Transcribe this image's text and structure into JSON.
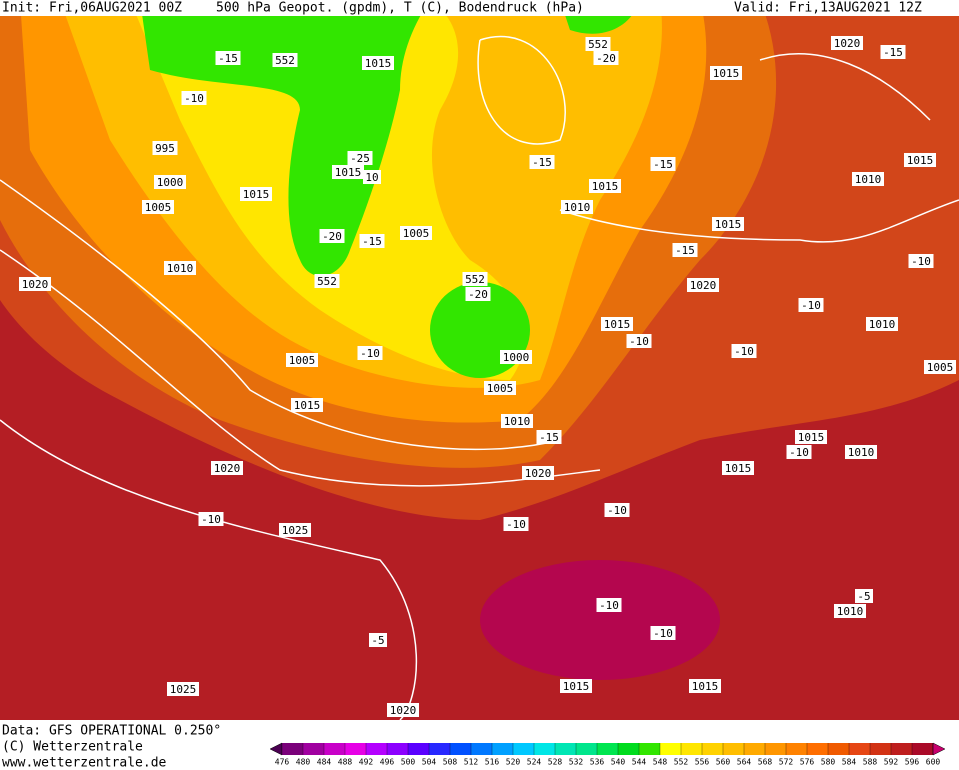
{
  "header": {
    "init": "Init: Fri,06AUG2021 00Z",
    "title": "500 hPa Geopot. (gpdm), T (C), Bodendruck (hPa)",
    "valid": "Valid: Fri,13AUG2021 12Z"
  },
  "map": {
    "labels": [
      "1015",
      "1020",
      "1015",
      "-15",
      "552",
      "552",
      "-20",
      "-15",
      "-10",
      "995",
      "-25",
      "-15",
      "-15",
      "1015",
      "10",
      "1000",
      "1015",
      "1015",
      "1010",
      "1005",
      "1015",
      "1010",
      "1015",
      "-20",
      "-15",
      "1005",
      "-15",
      "1010",
      "1020",
      "-10",
      "552",
      "552",
      "-20",
      "1020",
      "-10",
      "1010",
      "1015",
      "-10",
      "-10",
      "1005",
      "-10",
      "1000",
      "1005",
      "1005",
      "1015",
      "1010",
      "-15",
      "1015",
      "-10",
      "1010",
      "1015",
      "1020",
      "1020",
      "-10",
      "-10",
      "-10",
      "1025",
      "-5",
      "1010",
      "-10",
      "-10",
      "-5",
      "1025",
      "1015",
      "1015",
      "1020"
    ]
  },
  "footer": {
    "data": "Data: GFS OPERATIONAL 0.250°",
    "copyright": "(C) Wetterzentrale",
    "url": "www.wetterzentrale.de"
  },
  "colorbar": {
    "ticks": [
      476,
      480,
      484,
      488,
      492,
      496,
      500,
      504,
      508,
      512,
      516,
      520,
      524,
      528,
      532,
      536,
      540,
      544,
      548,
      552,
      556,
      560,
      564,
      568,
      572,
      576,
      580,
      584,
      588,
      592,
      596,
      600
    ],
    "colors": [
      "#4b0052",
      "#7a007a",
      "#a000a0",
      "#c800c8",
      "#e600e6",
      "#b400ff",
      "#8c00ff",
      "#5a00ff",
      "#2828ff",
      "#0050ff",
      "#0078ff",
      "#00a0ff",
      "#00c8ff",
      "#00e6e6",
      "#00e6b4",
      "#00e68c",
      "#00e650",
      "#00dc1e",
      "#32e600",
      "#ffff00",
      "#ffe600",
      "#ffd200",
      "#ffbe00",
      "#ffaa00",
      "#ff9600",
      "#ff8200",
      "#ff6e00",
      "#f05a00",
      "#e64614",
      "#d23214",
      "#be1e1e",
      "#aa0a28",
      "#c8006e"
    ]
  }
}
